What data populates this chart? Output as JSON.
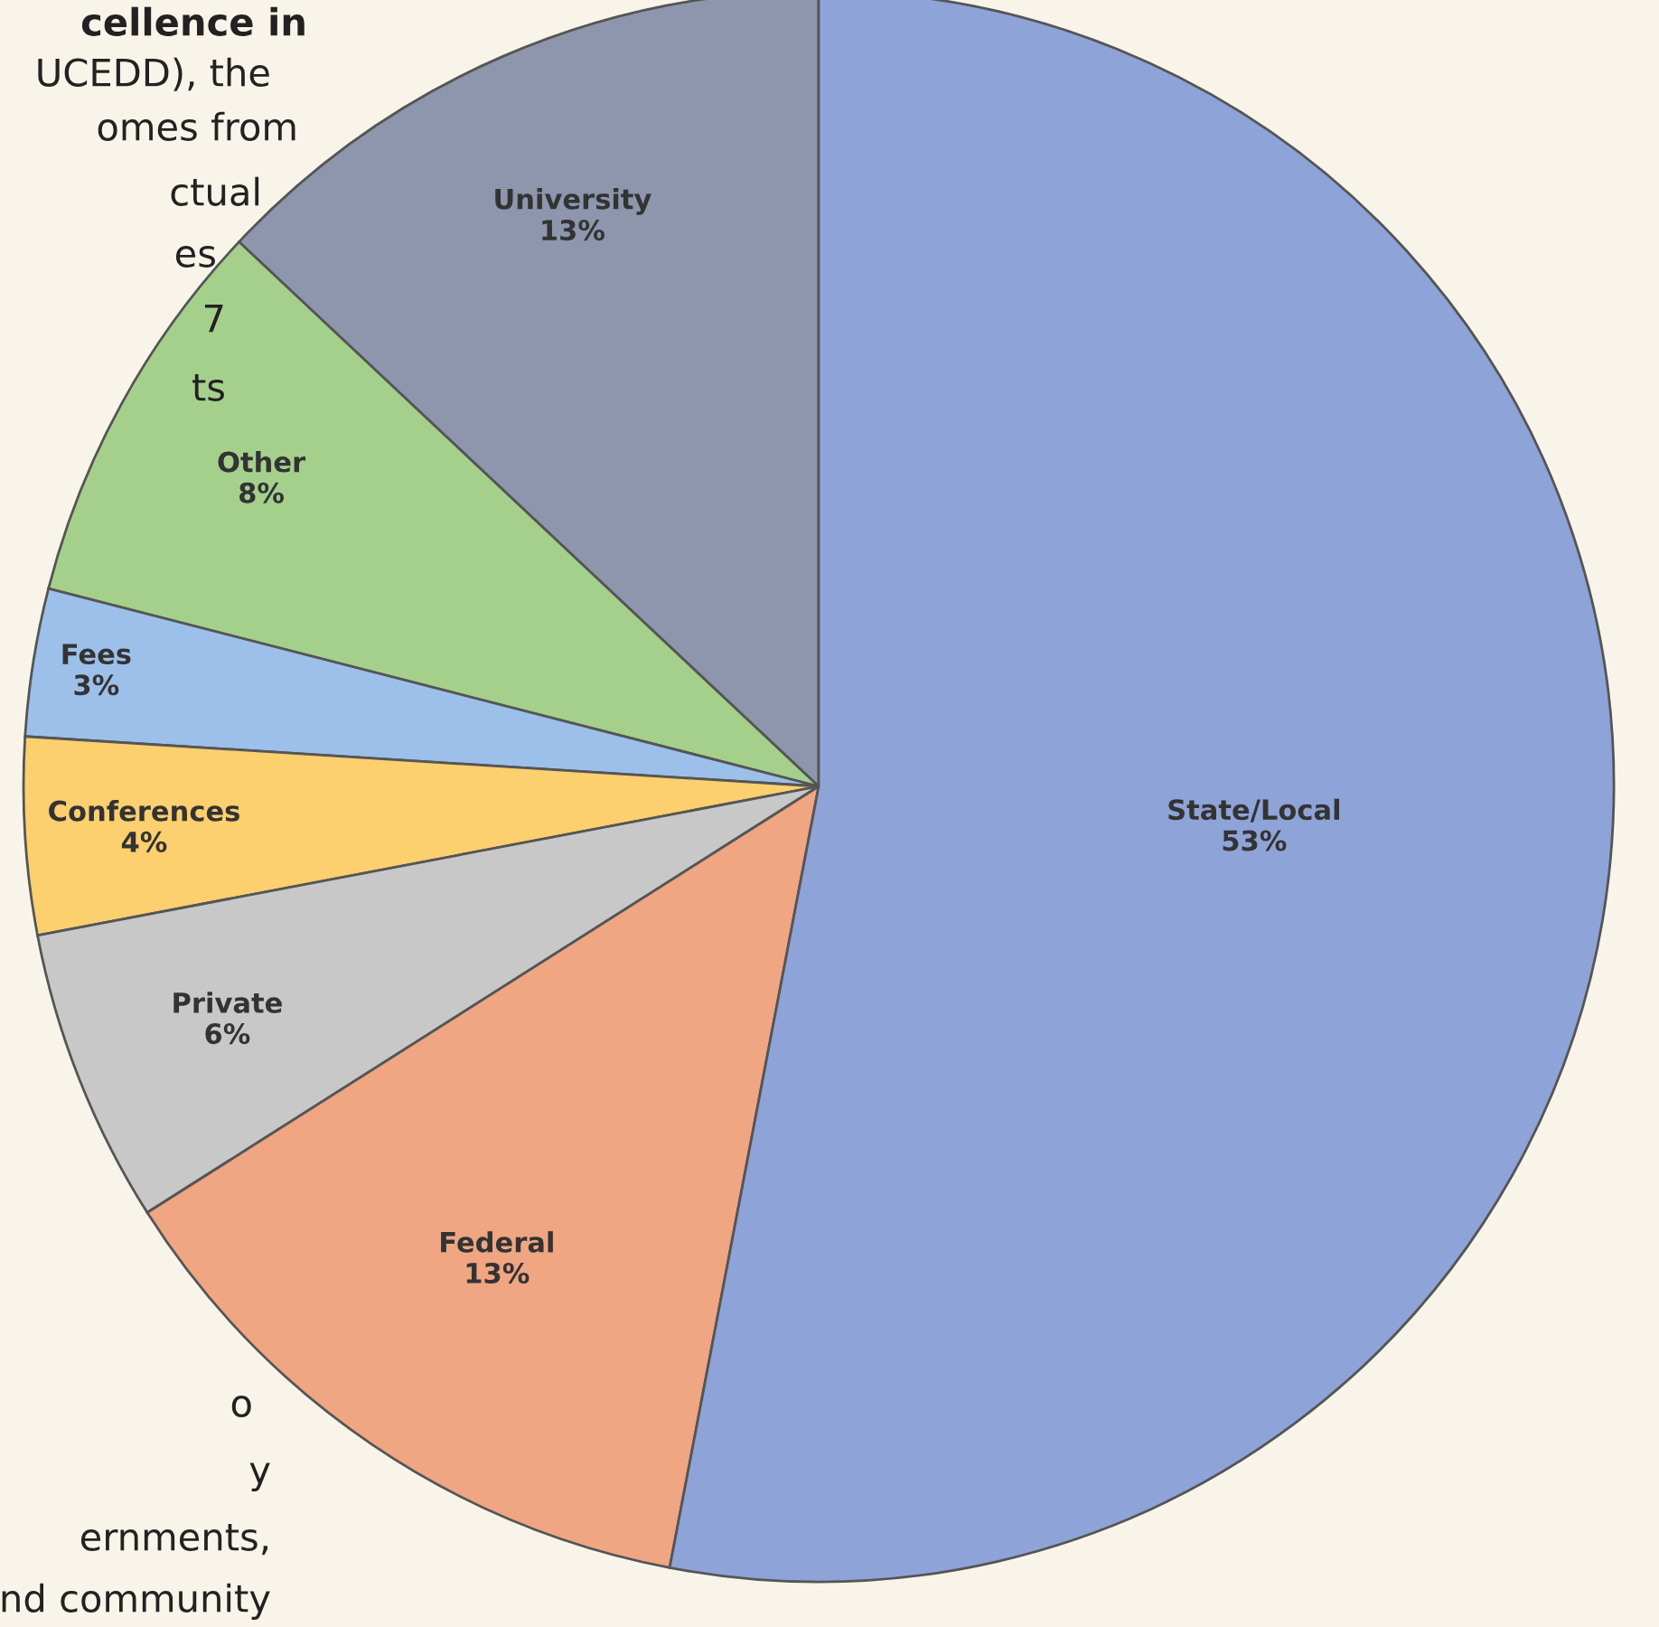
{
  "chart_data": {
    "type": "pie",
    "categories": [
      "University",
      "Other",
      "Fees",
      "Conferences",
      "Private",
      "Federal",
      "State/Local"
    ],
    "values": [
      13,
      8,
      3,
      4,
      6,
      13,
      53
    ],
    "value_labels": [
      "13%",
      "8%",
      "3%",
      "4%",
      "6%",
      "13%",
      "53%"
    ],
    "colors": [
      "#8d96ac",
      "#a5d08c",
      "#9dc0ea",
      "#fccf6f",
      "#c8c8c8",
      "#f0a583",
      "#8ea3d8"
    ],
    "annotations": [
      "cellence in",
      "UCEDD), the",
      "omes from",
      "ctual",
      "es",
      "7",
      "ts",
      "o",
      "y",
      "ernments,",
      "nd community"
    ]
  }
}
